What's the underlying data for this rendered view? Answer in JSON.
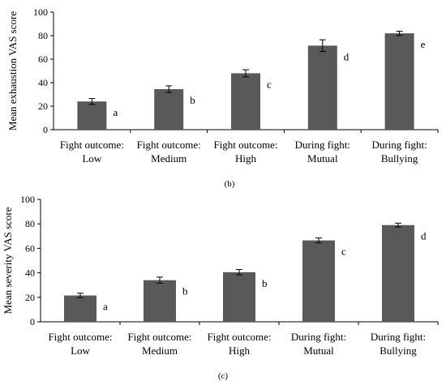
{
  "chart_data": [
    {
      "type": "bar",
      "panel_label": "(b)",
      "ylabel": "Mean exhaustion VAS score",
      "xlabel": "",
      "ylim": [
        0,
        100
      ],
      "yticks": [
        "0",
        "20",
        "40",
        "60",
        "80",
        "100"
      ],
      "categories": [
        [
          "Fight outcome:",
          "Low"
        ],
        [
          "Fight outcome:",
          "Medium"
        ],
        [
          "Fight outcome:",
          "High"
        ],
        [
          "During fight:",
          "Mutual"
        ],
        [
          "During fight:",
          "Bullying"
        ]
      ],
      "values": [
        24,
        34.5,
        48,
        71.5,
        82
      ],
      "errors": [
        2.5,
        2.8,
        3.0,
        5.0,
        1.8
      ],
      "sig_letters": [
        "a",
        "b",
        "c",
        "d",
        "e"
      ],
      "bar_color": "#595959",
      "grid": false,
      "legend": "none"
    },
    {
      "type": "bar",
      "panel_label": "(c)",
      "ylabel": "Mean severity VAS score",
      "xlabel": "",
      "ylim": [
        0,
        100
      ],
      "yticks": [
        "0",
        "20",
        "40",
        "60",
        "80",
        "100"
      ],
      "categories": [
        [
          "Fight outcome:",
          "Low"
        ],
        [
          "Fight outcome:",
          "Medium"
        ],
        [
          "Fight outcome:",
          "High"
        ],
        [
          "During fight:",
          "Mutual"
        ],
        [
          "During fight:",
          "Bullying"
        ]
      ],
      "values": [
        21.5,
        34,
        40.5,
        66.5,
        79
      ],
      "errors": [
        1.8,
        2.5,
        2.2,
        2.0,
        1.6
      ],
      "sig_letters": [
        "a",
        "b",
        "b",
        "c",
        "d"
      ],
      "bar_color": "#595959",
      "grid": false,
      "legend": "none"
    }
  ]
}
